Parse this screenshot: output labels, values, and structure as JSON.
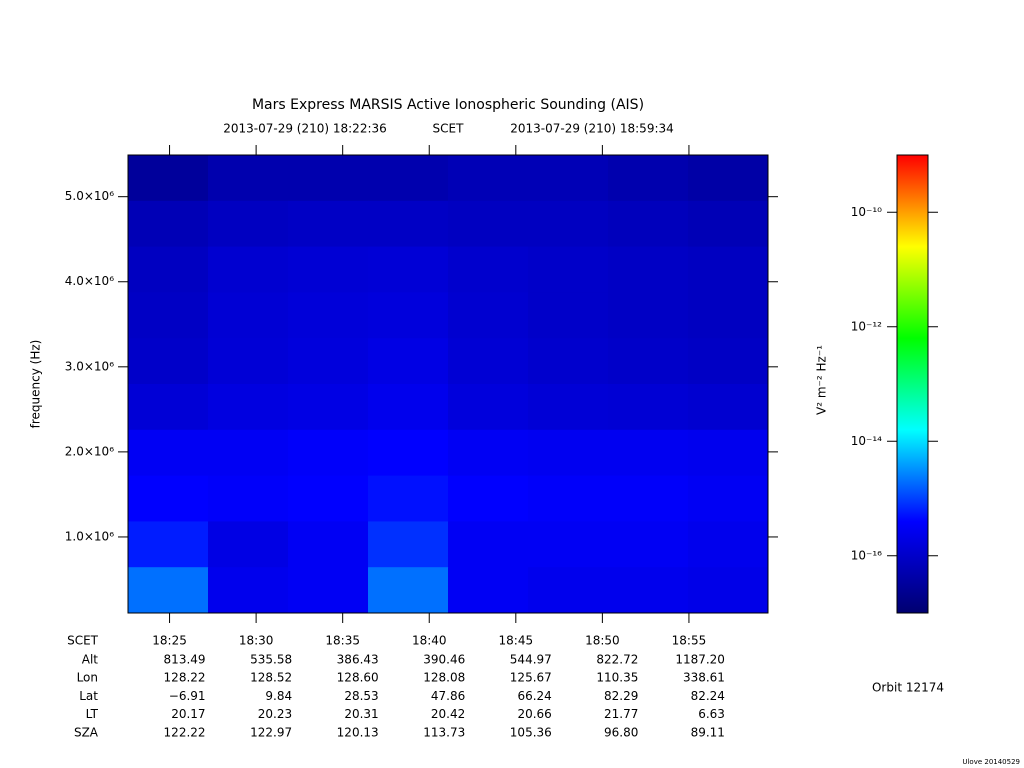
{
  "chart_data": {
    "type": "heatmap",
    "title": "Mars Express MARSIS Active Ionospheric Sounding (AIS)",
    "subtitle_start": "2013-07-29 (210) 18:22:36",
    "subtitle_mid": "SCET",
    "subtitle_end": "2013-07-29 (210) 18:59:34",
    "ylabel": "frequency (Hz)",
    "colorbar_label": "V² m⁻² Hz⁻¹",
    "xlim": [
      "18:22:36",
      "18:59:34"
    ],
    "xticks": [
      "18:25",
      "18:30",
      "18:35",
      "18:40",
      "18:45",
      "18:50",
      "18:55"
    ],
    "ylim": [
      106000,
      5490000
    ],
    "yticks": [
      {
        "value": 1000000,
        "label": "1.0×10⁶"
      },
      {
        "value": 2000000,
        "label": "2.0×10⁶"
      },
      {
        "value": 3000000,
        "label": "3.0×10⁶"
      },
      {
        "value": 4000000,
        "label": "4.0×10⁶"
      },
      {
        "value": 5000000,
        "label": "5.0×10⁶"
      }
    ],
    "zlim": [
      1e-17,
      1e-09
    ],
    "zscale": "log",
    "zticks": [
      {
        "value": 1e-10,
        "label": "10⁻¹⁰"
      },
      {
        "value": 1e-12,
        "label": "10⁻¹²"
      },
      {
        "value": 1e-14,
        "label": "10⁻¹⁴"
      },
      {
        "value": 1e-16,
        "label": "10⁻¹⁶"
      }
    ],
    "colormap": [
      "#000070",
      "#0000ff",
      "#00ffff",
      "#00ff00",
      "#ffff00",
      "#ff0000"
    ],
    "z": [
      [
        3e-17,
        5e-17,
        5e-17,
        5e-17,
        6e-17,
        6e-17,
        5e-17,
        4e-17
      ],
      [
        6e-17,
        8e-17,
        9e-17,
        9e-17,
        8e-17,
        8e-17,
        7e-17,
        6e-17
      ],
      [
        8e-17,
        1.2e-16,
        1.3e-16,
        1.4e-16,
        1.1e-16,
        1e-16,
        9e-17,
        8e-17
      ],
      [
        9e-17,
        1.3e-16,
        1.5e-16,
        1.6e-16,
        1.2e-16,
        1e-16,
        9e-17,
        8e-17
      ],
      [
        1e-16,
        1.4e-16,
        1.6e-16,
        2e-16,
        1.3e-16,
        1.1e-16,
        1e-16,
        9e-17
      ],
      [
        1.4e-16,
        1.8e-16,
        2e-16,
        2.5e-16,
        1.6e-16,
        1.4e-16,
        1.3e-16,
        1.2e-16
      ],
      [
        3e-16,
        3e-16,
        3.5e-16,
        4e-16,
        3e-16,
        2.8e-16,
        2.8e-16,
        2.6e-16
      ],
      [
        4e-16,
        3.5e-16,
        4e-16,
        5e-16,
        4e-16,
        3.5e-16,
        3.5e-16,
        3e-16
      ],
      [
        6e-16,
        2e-16,
        3e-16,
        8e-16,
        3e-16,
        3e-16,
        3e-16,
        2.5e-16
      ],
      [
        2e-15,
        2.5e-16,
        3e-16,
        2e-15,
        3e-16,
        2.5e-16,
        2.5e-16,
        2.2e-16
      ]
    ],
    "table": {
      "header": "SCET",
      "rows": [
        {
          "label": "Alt",
          "values": [
            "813.49",
            "535.58",
            "386.43",
            "390.46",
            "544.97",
            "822.72",
            "1187.20"
          ]
        },
        {
          "label": "Lon",
          "values": [
            "128.22",
            "128.52",
            "128.60",
            "128.08",
            "125.67",
            "110.35",
            "338.61"
          ]
        },
        {
          "label": "Lat",
          "values": [
            "−6.91",
            "9.84",
            "28.53",
            "47.86",
            "66.24",
            "82.29",
            "82.24"
          ]
        },
        {
          "label": "LT",
          "values": [
            "20.17",
            "20.23",
            "20.31",
            "20.42",
            "20.66",
            "21.77",
            "6.63"
          ]
        },
        {
          "label": "SZA",
          "values": [
            "122.22",
            "122.97",
            "120.13",
            "113.73",
            "105.36",
            "96.80",
            "89.11"
          ]
        }
      ]
    },
    "orbit": "Orbit 12174",
    "footer": "Ulove 20140529"
  }
}
